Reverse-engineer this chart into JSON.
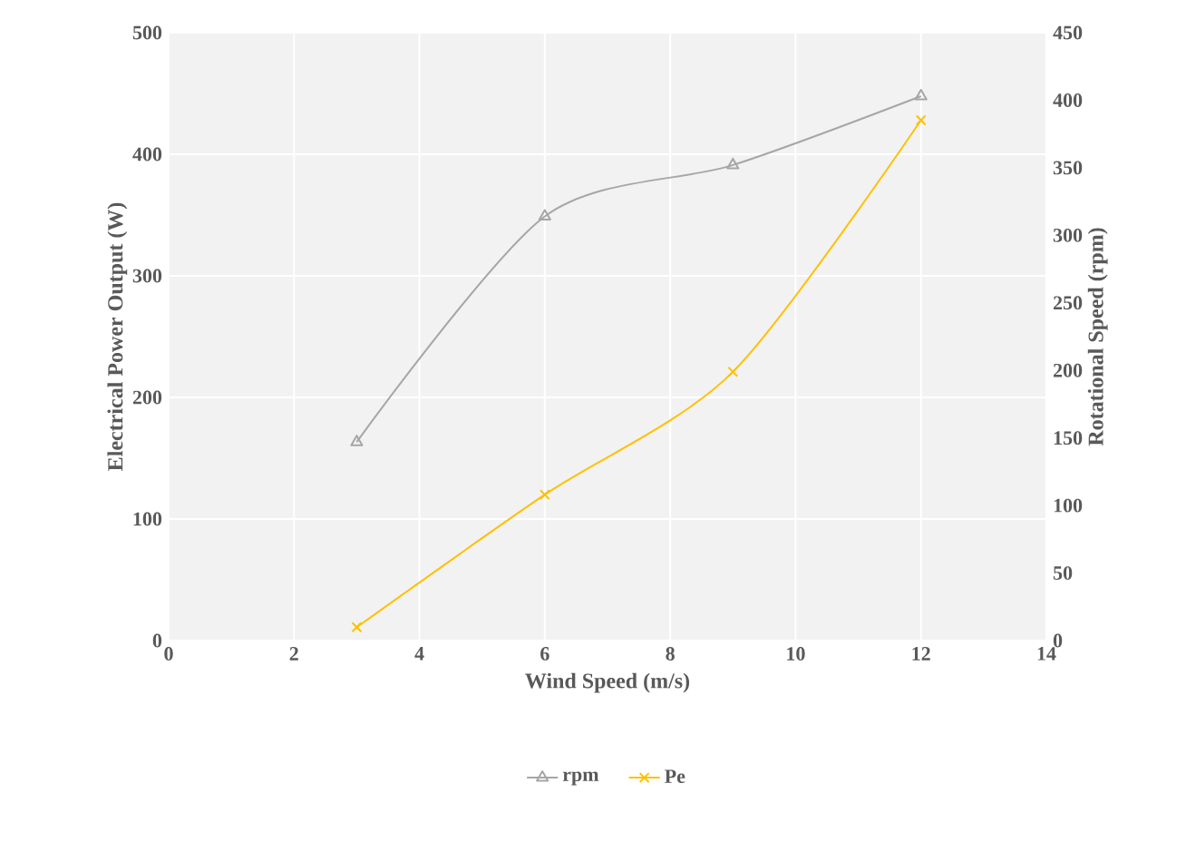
{
  "chart_data": {
    "type": "line",
    "xlabel": "Wind Speed (m/s)",
    "ylabel": "Electrical Power Output (W)",
    "y2label": "Rotational Speed (rpm)",
    "x": [
      3,
      6,
      9,
      12
    ],
    "series": [
      {
        "name": "rpm",
        "color": "#a6a6a6",
        "axis": "y2",
        "marker": "triangle",
        "values": [
          147,
          314,
          352,
          403
        ]
      },
      {
        "name": "Pe",
        "color": "#ffc000",
        "marker": "cross",
        "values": [
          11,
          120,
          221,
          428
        ]
      }
    ],
    "xlim": [
      0,
      14
    ],
    "xticks": [
      0,
      2,
      4,
      6,
      8,
      10,
      12,
      14
    ],
    "ylim": [
      0,
      500
    ],
    "yticks": [
      0,
      100,
      200,
      300,
      400,
      500
    ],
    "y2lim": [
      0,
      450
    ],
    "y2ticks": [
      0,
      50,
      100,
      150,
      200,
      250,
      300,
      350,
      400,
      450
    ],
    "grid": true,
    "legend": "bottom",
    "line_style": "solid"
  }
}
